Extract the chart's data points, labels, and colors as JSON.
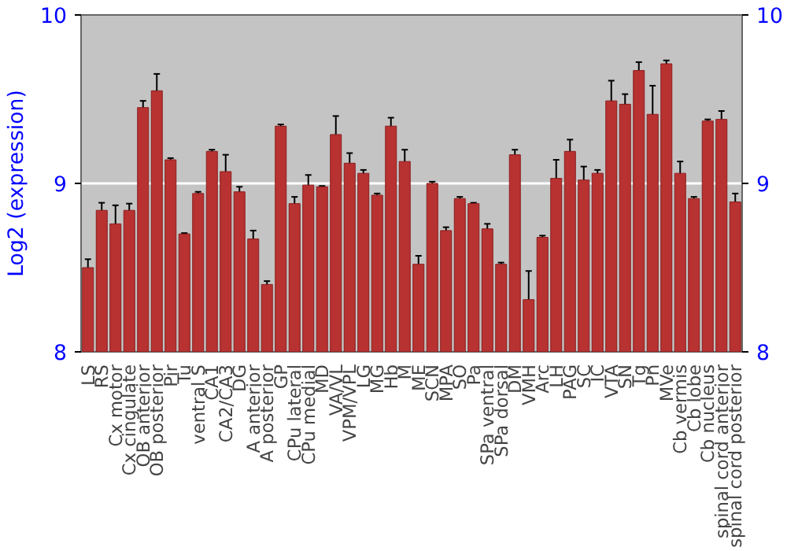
{
  "chart_data": {
    "type": "bar",
    "ylabel": "Log2 (expression)",
    "categories": [
      "LS",
      "RS",
      "Cx motor",
      "Cx cingulate",
      "OB anterior",
      "OB posterior",
      "Pir",
      "Tu",
      "ventral S",
      "CA1",
      "CA2/CA3",
      "DG",
      "A anterior",
      "A posterior",
      "GP",
      "CPu lateral",
      "CPu medial",
      "MD",
      "VA/VL",
      "VPM/VPL",
      "LG",
      "MG",
      "Hb",
      "M",
      "ME",
      "SCN",
      "MPA",
      "SO",
      "Pa",
      "SPa ventral",
      "SPa dorsal",
      "DM",
      "VMH",
      "Arc",
      "LH",
      "PAG",
      "SC",
      "IC",
      "VTA",
      "SN",
      "Tg",
      "Pn",
      "MVe",
      "Cb vermis",
      "Cb lobe",
      "Cb nucleus",
      "spinal cord anterior",
      "spinal cord posterior"
    ],
    "values": [
      8.5,
      8.84,
      8.76,
      8.84,
      9.45,
      9.55,
      9.14,
      8.7,
      8.94,
      9.19,
      9.07,
      8.95,
      8.67,
      8.4,
      9.34,
      8.88,
      8.99,
      8.98,
      9.29,
      9.12,
      9.06,
      8.93,
      9.34,
      9.13,
      8.52,
      9.0,
      8.72,
      8.91,
      8.88,
      8.73,
      8.52,
      9.17,
      8.31,
      8.68,
      9.03,
      9.19,
      9.02,
      9.06,
      9.49,
      9.47,
      9.67,
      9.41,
      9.71,
      9.06,
      8.91,
      9.37,
      9.38,
      8.89
    ],
    "errors": [
      0.05,
      0.045,
      0.11,
      0.04,
      0.04,
      0.1,
      0.01,
      0.005,
      0.01,
      0.01,
      0.1,
      0.03,
      0.05,
      0.02,
      0.01,
      0.04,
      0.06,
      0.005,
      0.11,
      0.06,
      0.02,
      0.01,
      0.05,
      0.07,
      0.05,
      0.01,
      0.02,
      0.01,
      0.005,
      0.03,
      0.01,
      0.03,
      0.17,
      0.01,
      0.11,
      0.07,
      0.08,
      0.02,
      0.12,
      0.06,
      0.05,
      0.17,
      0.02,
      0.07,
      0.01,
      0.01,
      0.05,
      0.05
    ],
    "color": "#b83232",
    "ylim": [
      8,
      10
    ],
    "yticks": [
      8,
      9,
      10
    ],
    "y2lim": [
      8,
      10
    ],
    "y2ticks": [
      8,
      9,
      10
    ],
    "grid": "y"
  }
}
